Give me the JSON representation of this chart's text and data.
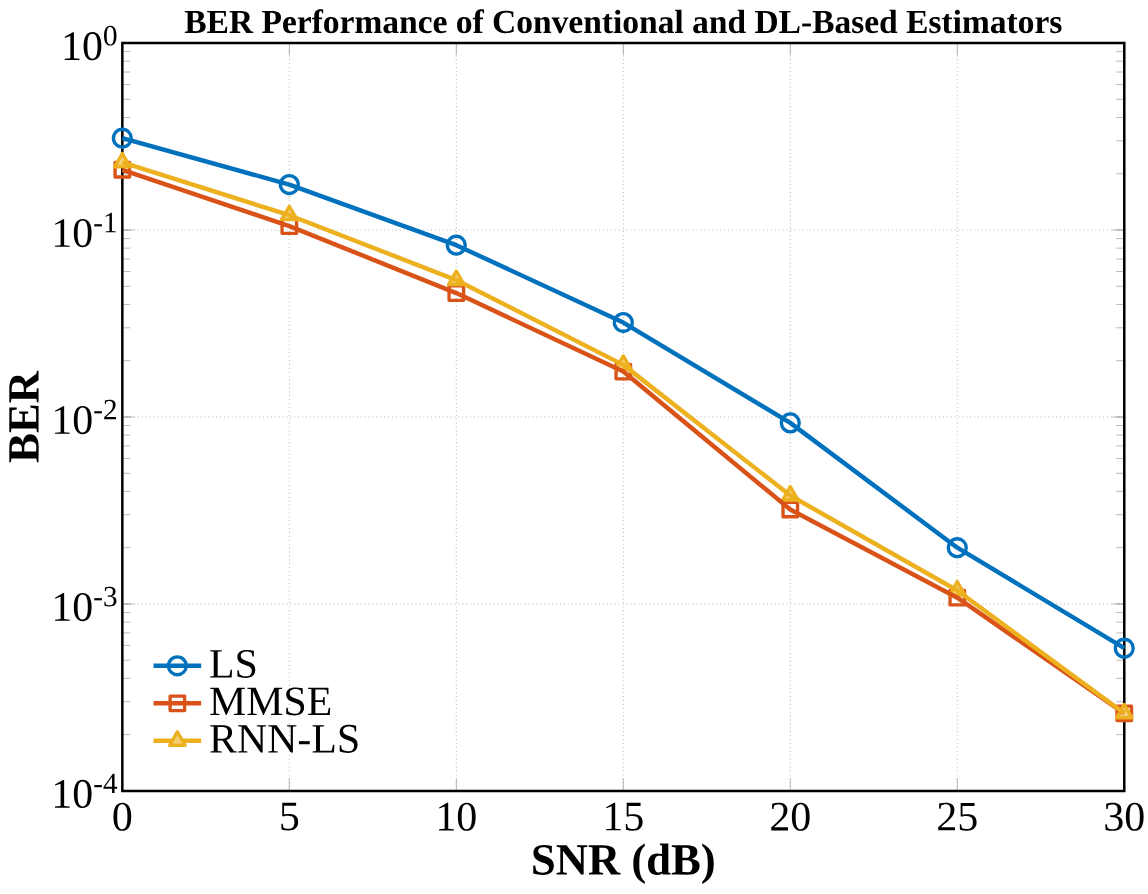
{
  "chart_data": {
    "type": "line",
    "title": "BER Performance of Conventional and DL-Based Estimators",
    "xlabel": "SNR (dB)",
    "ylabel": "BER",
    "x": [
      0,
      5,
      10,
      15,
      20,
      25,
      30
    ],
    "series": [
      {
        "name": "LS",
        "color": "#0072bd",
        "marker": "circle",
        "values": [
          0.31,
          0.175,
          0.083,
          0.032,
          0.0093,
          0.002,
          0.00058
        ]
      },
      {
        "name": "MMSE",
        "color": "#d95319",
        "marker": "square",
        "values": [
          0.21,
          0.105,
          0.046,
          0.0175,
          0.0032,
          0.00108,
          0.00026
        ]
      },
      {
        "name": "RNN-LS",
        "color": "#edb120",
        "marker": "triangle",
        "values": [
          0.23,
          0.12,
          0.054,
          0.019,
          0.0038,
          0.00118,
          0.00026
        ]
      }
    ],
    "xlim": [
      0,
      30
    ],
    "xticks": [
      0,
      5,
      10,
      15,
      20,
      25,
      30
    ],
    "ylim": [
      0.0001,
      1
    ],
    "yticks": [
      {
        "value": 0.0001,
        "label": "10$^{-4}$"
      },
      {
        "value": 0.001,
        "label": "10$^{-3}$"
      },
      {
        "value": 0.01,
        "label": "10$^{-2}$"
      },
      {
        "value": 0.1,
        "label": "10$^{-1}$"
      },
      {
        "value": 1,
        "label": "10$^{0}$"
      }
    ],
    "log": "y",
    "grid": true,
    "legend": "bottom left",
    "line_style": "solid"
  }
}
